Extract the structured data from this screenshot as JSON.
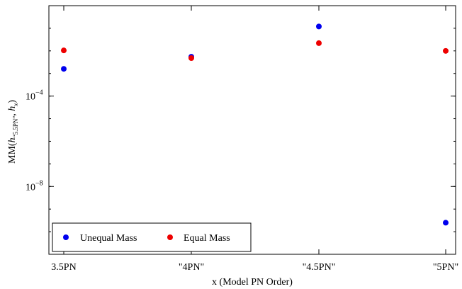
{
  "chart_data": {
    "type": "scatter",
    "title": "",
    "xlabel": "x (Model PN Order)",
    "ylabel": {
      "prefix": "MM(",
      "h": "h",
      "sub_first": "“5.5PN”",
      "sep": ", ",
      "sub_second": "x",
      "suffix": ")"
    },
    "categories": [
      "3.5PN",
      "\"4PN\"",
      "\"4.5PN\"",
      "\"5PN\""
    ],
    "y_scale": "log10",
    "ylim": [
      1e-11,
      1
    ],
    "yticks": [
      {
        "value": 0.0001,
        "base": "10",
        "exp": "−4"
      },
      {
        "value": 1e-08,
        "base": "10",
        "exp": "−8"
      }
    ],
    "grid": false,
    "legend_position": "bottom-left",
    "series": [
      {
        "name": "Unequal Mass",
        "color": "#0000ee",
        "values": [
          0.0016,
          0.0055,
          0.12,
          2.5e-10
        ]
      },
      {
        "name": "Equal Mass",
        "color": "#ee0000",
        "values": [
          0.0105,
          0.0048,
          0.022,
          0.01
        ]
      }
    ]
  }
}
